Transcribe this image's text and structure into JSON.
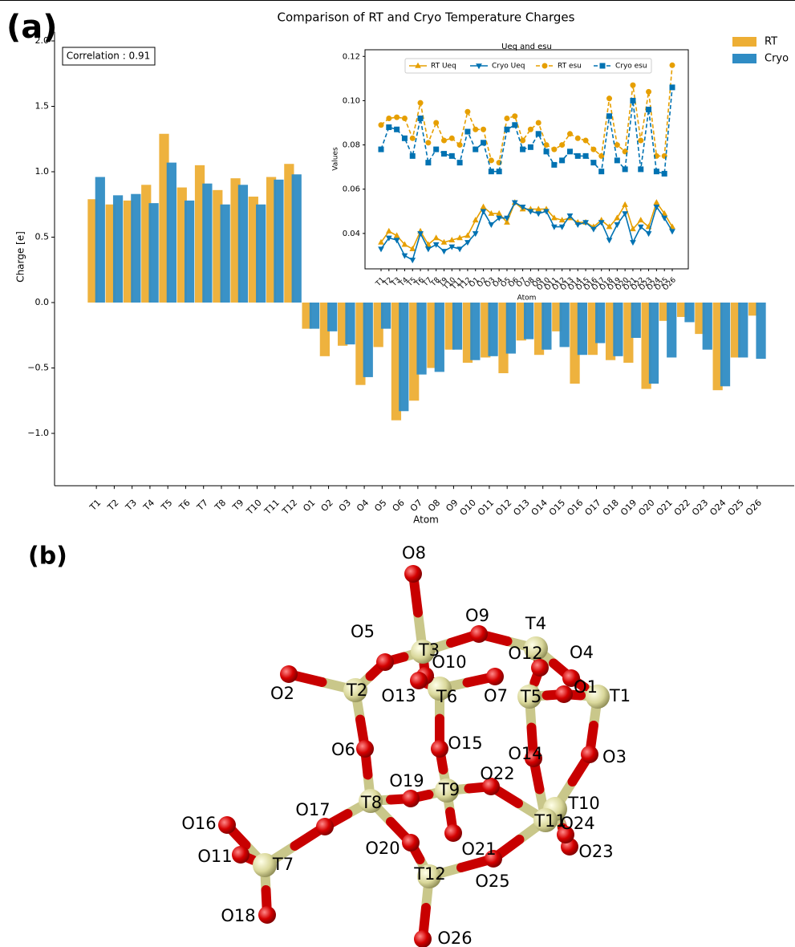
{
  "panel_labels": [
    "(a)",
    "(b)"
  ],
  "chart_data": [
    {
      "type": "bar",
      "title": "Comparison of RT and Cryo Temperature Charges",
      "x_label": "Atom",
      "y_label": "Charge [e]",
      "annotation": "Correlation : 0.91",
      "categories": [
        "T1",
        "T2",
        "T3",
        "T4",
        "T5",
        "T6",
        "T7",
        "T8",
        "T9",
        "T10",
        "T11",
        "T12",
        "O1",
        "O2",
        "O3",
        "O4",
        "O5",
        "O6",
        "O7",
        "O8",
        "O9",
        "O10",
        "O11",
        "O12",
        "O13",
        "O14",
        "O15",
        "O16",
        "O17",
        "O18",
        "O19",
        "O20",
        "O21",
        "O22",
        "O23",
        "O24",
        "O25",
        "O26"
      ],
      "series": [
        {
          "name": "RT",
          "color": "#edae34",
          "values": [
            0.79,
            0.75,
            0.78,
            0.9,
            1.29,
            0.88,
            1.05,
            0.86,
            0.95,
            0.81,
            0.96,
            1.06,
            -0.2,
            -0.41,
            -0.33,
            -0.63,
            -0.34,
            -0.9,
            -0.75,
            -0.5,
            -0.36,
            -0.46,
            -0.42,
            -0.54,
            -0.29,
            -0.4,
            -0.22,
            -0.62,
            -0.4,
            -0.44,
            -0.46,
            -0.66,
            -0.14,
            -0.11,
            -0.24,
            -0.67,
            -0.42,
            -0.1
          ]
        },
        {
          "name": "Cryo",
          "color": "#2f8cc4",
          "values": [
            0.96,
            0.82,
            0.83,
            0.76,
            1.07,
            0.78,
            0.91,
            0.75,
            0.9,
            0.75,
            0.94,
            0.98,
            -0.2,
            -0.22,
            -0.32,
            -0.57,
            -0.2,
            -0.83,
            -0.55,
            -0.53,
            -0.36,
            -0.44,
            -0.41,
            -0.39,
            -0.28,
            -0.36,
            -0.34,
            -0.4,
            -0.31,
            -0.41,
            -0.27,
            -0.62,
            -0.42,
            -0.15,
            -0.36,
            -0.64,
            -0.42,
            -0.43
          ]
        }
      ],
      "ylim": [
        -1.4,
        2.07
      ],
      "yticks": [
        {
          "value": -1,
          "label": "−1.0"
        },
        {
          "value": -0.5,
          "label": "−0.5"
        },
        {
          "value": 0,
          "label": "0.0"
        },
        0.5,
        {
          "value": 1,
          "label": "1.0"
        },
        1.5,
        {
          "value": 2,
          "label": "2.0"
        }
      ],
      "legend": "upper right",
      "grid": false
    },
    {
      "type": "line",
      "title": "Ueq and esu",
      "x_label": "Atom",
      "y_label": "Values",
      "categories": [
        "T1",
        "T2",
        "T3",
        "T4",
        "T5",
        "T6",
        "T7",
        "T8",
        "T9",
        "T10",
        "T11",
        "T12",
        "O1",
        "O2",
        "O3",
        "O4",
        "O5",
        "O6",
        "O7",
        "O8",
        "O9",
        "O10",
        "O11",
        "O12",
        "O13",
        "O14",
        "O15",
        "O16",
        "O17",
        "O18",
        "O19",
        "O20",
        "O21",
        "O22",
        "O23",
        "O24",
        "O25",
        "O26"
      ],
      "series": [
        {
          "name": "RT Ueq",
          "color": "#e69f00",
          "marker": "triangle-up",
          "linestyle": "solid",
          "values": [
            0.036,
            0.041,
            0.039,
            0.035,
            0.033,
            0.041,
            0.035,
            0.038,
            0.036,
            0.037,
            0.038,
            0.039,
            0.046,
            0.052,
            0.049,
            0.049,
            0.045,
            0.054,
            0.051,
            0.051,
            0.051,
            0.051,
            0.047,
            0.046,
            0.047,
            0.045,
            0.045,
            0.043,
            0.046,
            0.043,
            0.047,
            0.053,
            0.042,
            0.046,
            0.043,
            0.054,
            0.049,
            0.043
          ]
        },
        {
          "name": "Cryo Ueq",
          "color": "#0072b2",
          "marker": "triangle-down",
          "linestyle": "solid",
          "values": [
            0.033,
            0.038,
            0.037,
            0.03,
            0.028,
            0.04,
            0.033,
            0.035,
            0.032,
            0.034,
            0.033,
            0.036,
            0.04,
            0.05,
            0.044,
            0.047,
            0.047,
            0.054,
            0.052,
            0.05,
            0.049,
            0.05,
            0.043,
            0.043,
            0.048,
            0.044,
            0.045,
            0.042,
            0.045,
            0.037,
            0.044,
            0.049,
            0.036,
            0.043,
            0.04,
            0.052,
            0.047,
            0.041
          ]
        },
        {
          "name": "RT esu",
          "color": "#e69f00",
          "marker": "circle",
          "linestyle": "dashed",
          "values": [
            0.089,
            0.092,
            0.0925,
            0.092,
            0.083,
            0.099,
            0.081,
            0.09,
            0.082,
            0.083,
            0.08,
            0.095,
            0.087,
            0.087,
            0.073,
            0.072,
            0.092,
            0.093,
            0.082,
            0.087,
            0.09,
            0.08,
            0.078,
            0.08,
            0.085,
            0.083,
            0.082,
            0.078,
            0.075,
            0.101,
            0.08,
            0.077,
            0.107,
            0.082,
            0.104,
            0.075,
            0.075,
            0.116
          ]
        },
        {
          "name": "Cryo esu",
          "color": "#0072b2",
          "marker": "square",
          "linestyle": "dashed",
          "values": [
            0.078,
            0.088,
            0.087,
            0.083,
            0.075,
            0.092,
            0.072,
            0.078,
            0.076,
            0.075,
            0.072,
            0.086,
            0.078,
            0.081,
            0.068,
            0.068,
            0.087,
            0.089,
            0.078,
            0.079,
            0.085,
            0.077,
            0.071,
            0.073,
            0.077,
            0.075,
            0.075,
            0.072,
            0.068,
            0.093,
            0.073,
            0.069,
            0.1,
            0.069,
            0.096,
            0.068,
            0.067,
            0.106
          ]
        }
      ],
      "ylim": [
        0.024,
        0.123
      ],
      "yticks": [
        0.04,
        0.06,
        0.08,
        {
          "value": 0.1,
          "label": "0.10"
        },
        0.12
      ],
      "legend": "upper center",
      "grid": false
    }
  ],
  "diagram": {
    "atoms": [
      "T1",
      "T2",
      "T3",
      "T4",
      "T5",
      "T6",
      "T7",
      "T8",
      "T9",
      "T10",
      "T11",
      "T12",
      "O1",
      "O2",
      "O3",
      "O4",
      "O5",
      "O6",
      "O7",
      "O8",
      "O9",
      "O10",
      "O11",
      "O12",
      "O13",
      "O14",
      "O15",
      "O16",
      "O17",
      "O18",
      "O19",
      "O20",
      "O21",
      "O22",
      "O23",
      "O24",
      "O25",
      "O26"
    ]
  }
}
